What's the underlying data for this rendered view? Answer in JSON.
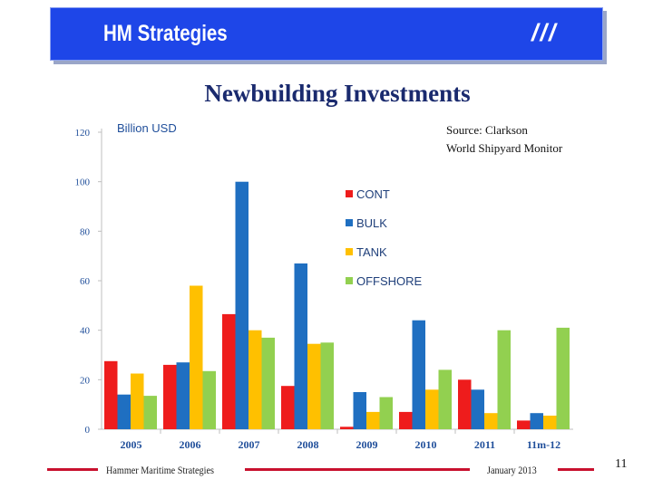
{
  "header": {
    "title": "HM Strategies",
    "mark": "///"
  },
  "slide_title": "Newbuilding Investments",
  "source": {
    "line1": "Source: Clarkson",
    "line2": "World Shipyard Monitor"
  },
  "chart_data": {
    "type": "bar",
    "title": "Newbuilding Investments",
    "ylabel": "Billion USD",
    "xlabel": "",
    "ylim": [
      0,
      120
    ],
    "yticks": [
      0,
      20,
      40,
      60,
      80,
      100,
      120
    ],
    "grid": false,
    "legend_position": "center",
    "categories": [
      "2005",
      "2006",
      "2007",
      "2008",
      "2009",
      "2010",
      "2011",
      "11m-12"
    ],
    "series": [
      {
        "name": "CONT",
        "color": "#ee1c1c",
        "values": [
          27.5,
          26,
          46.5,
          17.5,
          1,
          7,
          20,
          3.5
        ]
      },
      {
        "name": "BULK",
        "color": "#1f6fc1",
        "values": [
          14,
          27,
          100,
          67,
          15,
          44,
          16,
          6.5
        ]
      },
      {
        "name": "TANK",
        "color": "#ffc000",
        "values": [
          22.5,
          58,
          40,
          34.5,
          7,
          16,
          6.5,
          5.5
        ]
      },
      {
        "name": "OFFSHORE",
        "color": "#92d050",
        "values": [
          13.5,
          23.5,
          37,
          35,
          13,
          24,
          40,
          41
        ]
      }
    ]
  },
  "footer": {
    "company": "Hammer Maritime Strategies",
    "date": "January 2013",
    "page": "11"
  }
}
